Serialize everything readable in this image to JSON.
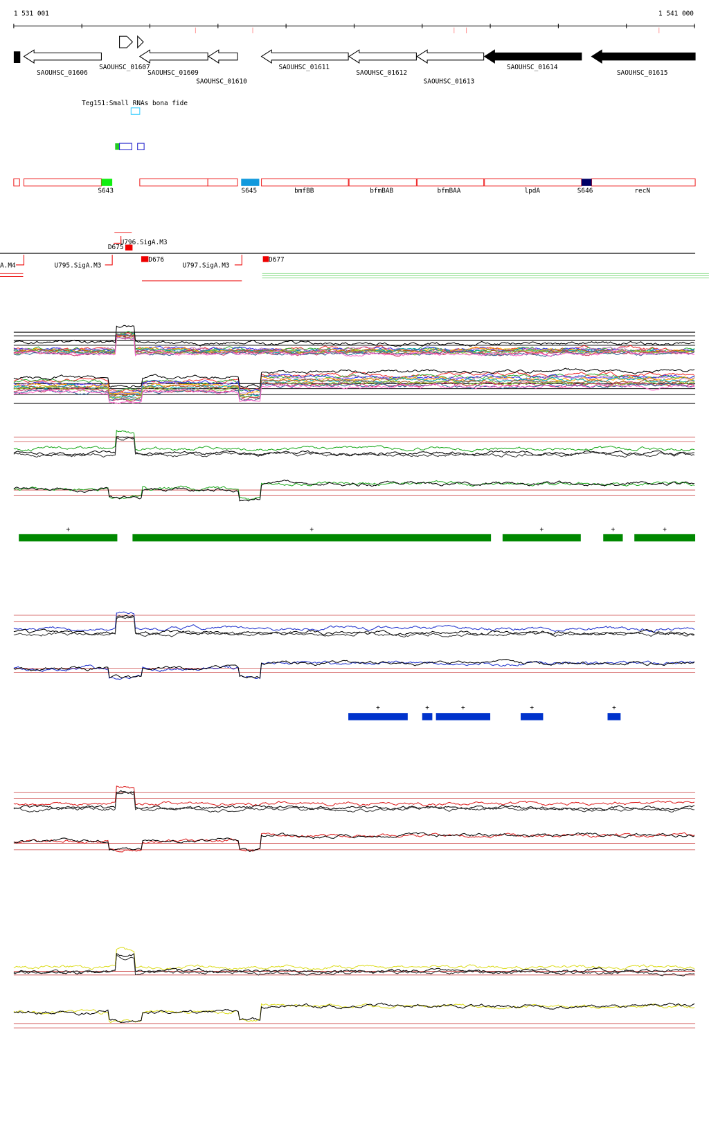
{
  "ruler": {
    "start": "1 531 001",
    "end": "1 541 000"
  },
  "genes": [
    "SAOUHSC_01606",
    "SAOUHSC_01607",
    "SAOUHSC_01609",
    "SAOUHSC_01610",
    "SAOUHSC_01611",
    "SAOUHSC_01612",
    "SAOUHSC_01613",
    "SAOUHSC_01614",
    "SAOUHSC_01615"
  ],
  "srna": {
    "label": "Teg151:Small RNAs bona fide"
  },
  "regions": [
    "S643",
    "S645",
    "bmfBB",
    "bfmBAB",
    "bfmBAA",
    "lpdA",
    "S646",
    "recN"
  ],
  "promoters": [
    "A.M4",
    "U795.SigA.M3",
    "U796.SigA.M3",
    "D675",
    "D676",
    "U797.SigA.M3",
    "D677"
  ],
  "green_segments": [
    "+",
    "+",
    "+",
    "+",
    "+"
  ],
  "blue_segments": [
    "+",
    "+",
    "+",
    "+",
    "+"
  ]
}
